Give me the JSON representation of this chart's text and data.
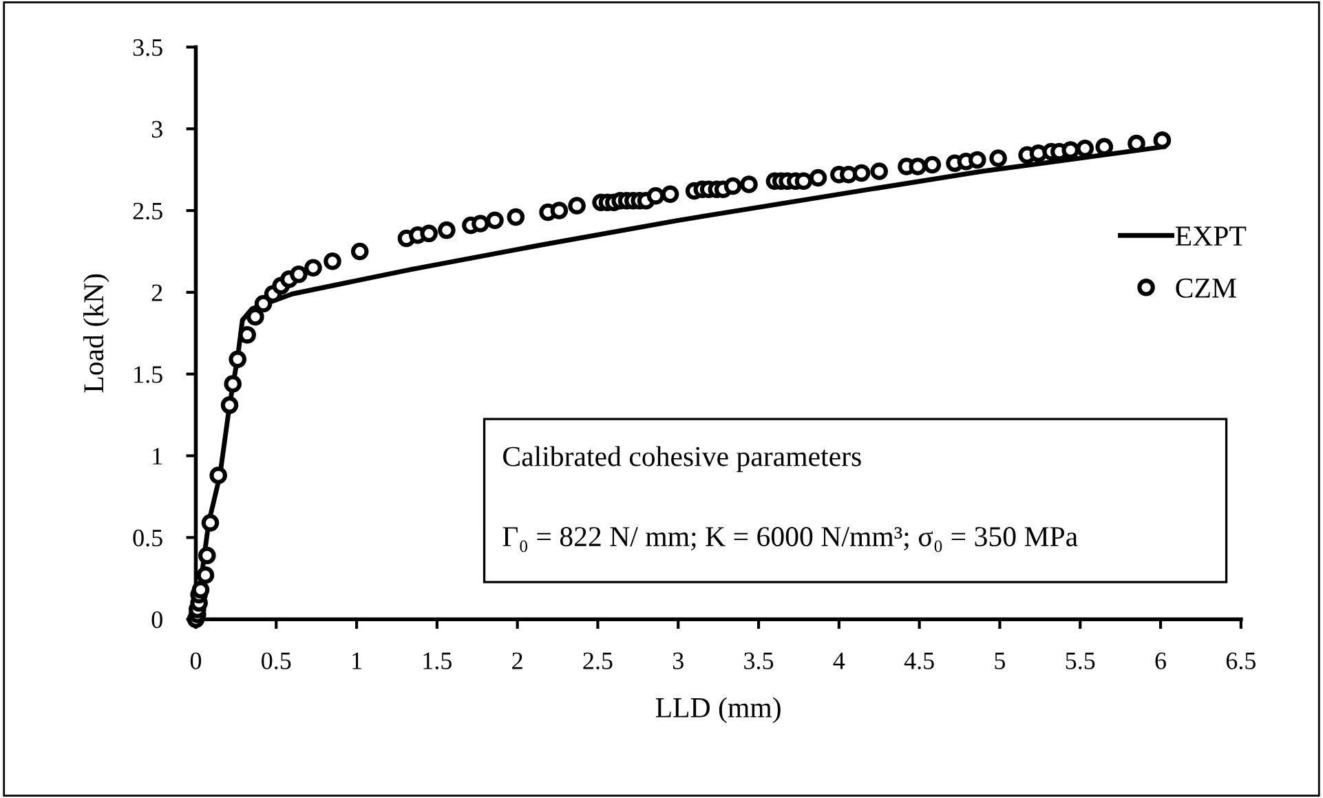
{
  "chart_data": {
    "type": "line",
    "xlabel": "LLD (mm)",
    "ylabel": "Load (kN)",
    "xlim": [
      0,
      6.5
    ],
    "xticks": [
      0,
      0.5,
      1,
      1.5,
      2,
      2.5,
      3,
      3.5,
      4,
      4.5,
      5,
      5.5,
      6,
      6.5
    ],
    "ylim": [
      0,
      3.5
    ],
    "yticks": [
      0,
      0.5,
      1,
      1.5,
      2,
      2.5,
      3,
      3.5
    ],
    "grid": false,
    "legend": "right",
    "annotations": [
      "Calibrated cohesive parameters",
      "Γ₀ = 822 N/ mm; K = 6000 N/mm³; σ₀ = 350 MPa"
    ],
    "series": [
      {
        "name": "EXPT",
        "color": "#000000",
        "marker": "none",
        "line_style": "solid",
        "x": [
          0,
          0.08,
          0.15,
          0.21,
          0.26,
          0.29,
          0.35,
          0.6,
          1.34,
          2.15,
          3.0,
          4.0,
          4.89,
          6.02
        ],
        "values": [
          0,
          0.59,
          0.88,
          1.31,
          1.6,
          1.83,
          1.9,
          1.99,
          2.14,
          2.29,
          2.44,
          2.6,
          2.74,
          2.89
        ]
      },
      {
        "name": "CZM",
        "type": "scatter",
        "color": "#000000",
        "marker": "circle",
        "x": [
          0,
          0.01,
          0.01,
          0.02,
          0.02,
          0.03,
          0.06,
          0.07,
          0.09,
          0.14,
          0.21,
          0.23,
          0.26,
          0.32,
          0.37,
          0.42,
          0.48,
          0.53,
          0.58,
          0.64,
          0.73,
          0.85,
          1.02,
          1.31,
          1.38,
          1.45,
          1.56,
          1.71,
          1.77,
          1.86,
          1.99,
          2.19,
          2.26,
          2.37,
          2.52,
          2.56,
          2.6,
          2.64,
          2.68,
          2.72,
          2.76,
          2.8,
          2.86,
          2.95,
          3.1,
          3.15,
          3.19,
          3.24,
          3.28,
          3.34,
          3.44,
          3.6,
          3.64,
          3.68,
          3.73,
          3.78,
          3.87,
          4.0,
          4.06,
          4.14,
          4.25,
          4.42,
          4.49,
          4.58,
          4.72,
          4.79,
          4.86,
          4.99,
          5.17,
          5.24,
          5.32,
          5.37,
          5.44,
          5.53,
          5.65,
          5.85,
          6.01
        ],
        "values": [
          0,
          0.03,
          0.06,
          0.1,
          0.15,
          0.18,
          0.27,
          0.39,
          0.59,
          0.88,
          1.31,
          1.44,
          1.59,
          1.74,
          1.85,
          1.93,
          1.99,
          2.04,
          2.08,
          2.11,
          2.15,
          2.19,
          2.25,
          2.33,
          2.35,
          2.36,
          2.38,
          2.41,
          2.42,
          2.44,
          2.46,
          2.49,
          2.5,
          2.53,
          2.55,
          2.55,
          2.55,
          2.56,
          2.56,
          2.56,
          2.56,
          2.56,
          2.59,
          2.6,
          2.62,
          2.63,
          2.63,
          2.63,
          2.63,
          2.65,
          2.66,
          2.68,
          2.68,
          2.68,
          2.68,
          2.68,
          2.7,
          2.72,
          2.72,
          2.73,
          2.74,
          2.77,
          2.77,
          2.78,
          2.79,
          2.8,
          2.81,
          2.82,
          2.84,
          2.85,
          2.86,
          2.86,
          2.87,
          2.88,
          2.89,
          2.91,
          2.93
        ]
      }
    ]
  }
}
